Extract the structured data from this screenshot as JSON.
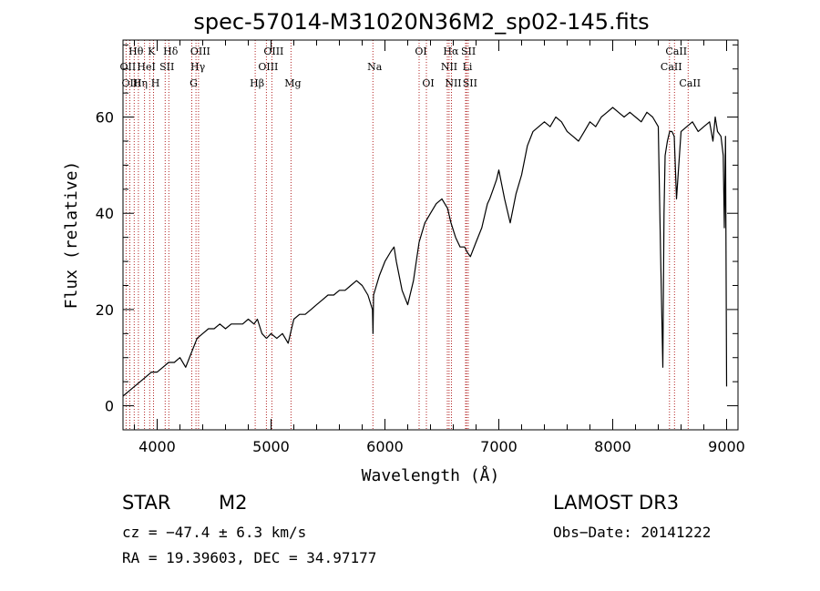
{
  "chart_data": {
    "type": "line",
    "title": "spec-57014-M31020N36M2_sp02-145.fits",
    "xlabel": "Wavelength (Å)",
    "ylabel": "Flux (relative)",
    "xlim": [
      3700,
      9100
    ],
    "ylim": [
      -5,
      76
    ],
    "xticks": [
      4000,
      5000,
      6000,
      7000,
      8000,
      9000
    ],
    "yticks": [
      0,
      20,
      40,
      60
    ],
    "series": [
      {
        "name": "flux",
        "x": [
          3700,
          3750,
          3800,
          3850,
          3900,
          3950,
          4000,
          4050,
          4100,
          4150,
          4200,
          4250,
          4300,
          4350,
          4400,
          4450,
          4500,
          4550,
          4600,
          4650,
          4700,
          4750,
          4800,
          4850,
          4880,
          4920,
          4960,
          5000,
          5050,
          5100,
          5150,
          5180,
          5200,
          5250,
          5300,
          5350,
          5400,
          5450,
          5500,
          5550,
          5600,
          5650,
          5700,
          5750,
          5800,
          5850,
          5890,
          5895,
          5900,
          5950,
          6000,
          6050,
          6080,
          6100,
          6150,
          6200,
          6250,
          6300,
          6350,
          6400,
          6450,
          6500,
          6550,
          6560,
          6580,
          6620,
          6660,
          6700,
          6720,
          6750,
          6800,
          6850,
          6880,
          6900,
          6920,
          6950,
          6980,
          7000,
          7050,
          7100,
          7150,
          7200,
          7250,
          7300,
          7350,
          7400,
          7450,
          7500,
          7550,
          7600,
          7650,
          7700,
          7750,
          7800,
          7850,
          7900,
          7950,
          8000,
          8050,
          8100,
          8150,
          8200,
          8250,
          8300,
          8350,
          8400,
          8420,
          8440,
          8450,
          8460,
          8480,
          8500,
          8520,
          8540,
          8560,
          8600,
          8650,
          8700,
          8750,
          8800,
          8850,
          8880,
          8900,
          8920,
          8950,
          8970,
          8980,
          8990,
          9000
        ],
        "y": [
          2,
          3,
          4,
          5,
          6,
          7,
          7,
          8,
          9,
          9,
          10,
          8,
          11,
          14,
          15,
          16,
          16,
          17,
          16,
          17,
          17,
          17,
          18,
          17,
          18,
          15,
          14,
          15,
          14,
          15,
          13,
          16,
          18,
          19,
          19,
          20,
          21,
          22,
          23,
          23,
          24,
          24,
          25,
          26,
          25,
          23,
          20,
          15,
          23,
          27,
          30,
          32,
          33,
          30,
          24,
          21,
          26,
          34,
          38,
          40,
          42,
          43,
          41,
          40,
          38,
          35,
          33,
          33,
          32,
          31,
          34,
          37,
          40,
          42,
          43,
          45,
          47,
          49,
          43,
          38,
          44,
          48,
          54,
          57,
          58,
          59,
          58,
          60,
          59,
          57,
          56,
          55,
          57,
          59,
          58,
          60,
          61,
          62,
          61,
          60,
          61,
          60,
          59,
          61,
          60,
          58,
          32,
          8,
          40,
          52,
          55,
          57,
          57,
          56,
          43,
          57,
          58,
          59,
          57,
          58,
          59,
          55,
          60,
          57,
          56,
          52,
          37,
          56,
          4
        ]
      }
    ],
    "lines": [
      {
        "name": "Hθ",
        "wavelength": 3798
      },
      {
        "name": "OII",
        "wavelength": 3727
      },
      {
        "name": "OIII",
        "wavelength": 3760
      },
      {
        "name": "K",
        "wavelength": 3934
      },
      {
        "name": "H",
        "wavelength": 3968
      },
      {
        "name": "HeI",
        "wavelength": 3889
      },
      {
        "name": "Hη",
        "wavelength": 3835
      },
      {
        "name": "SII",
        "wavelength": 4070
      },
      {
        "name": "Hδ",
        "wavelength": 4102
      },
      {
        "name": "OIII",
        "wavelength": 4363
      },
      {
        "name": "Hγ",
        "wavelength": 4341
      },
      {
        "name": "G",
        "wavelength": 4304
      },
      {
        "name": "Hβ",
        "wavelength": 4861
      },
      {
        "name": "OIII",
        "wavelength": 4959
      },
      {
        "name": "OIII",
        "wavelength": 5007
      },
      {
        "name": "Mg",
        "wavelength": 5175
      },
      {
        "name": "Na",
        "wavelength": 5894
      },
      {
        "name": "OI",
        "wavelength": 6300
      },
      {
        "name": "OI",
        "wavelength": 6364
      },
      {
        "name": "Hα",
        "wavelength": 6563
      },
      {
        "name": "NII",
        "wavelength": 6548
      },
      {
        "name": "NII",
        "wavelength": 6584
      },
      {
        "name": "SII",
        "wavelength": 6717
      },
      {
        "name": "SII",
        "wavelength": 6731
      },
      {
        "name": "Li",
        "wavelength": 6708
      },
      {
        "name": "CaII",
        "wavelength": 8498
      },
      {
        "name": "CaII",
        "wavelength": 8542
      },
      {
        "name": "CaII",
        "wavelength": 8662
      }
    ]
  },
  "info": {
    "class": "STAR",
    "subclass": "M2",
    "survey": "LAMOST DR3",
    "cz": "cz = −47.4 ± 6.3 km/s",
    "obs_date": "Obs−Date: 20141222",
    "coords": "RA =  19.39603, DEC =  34.97177"
  }
}
